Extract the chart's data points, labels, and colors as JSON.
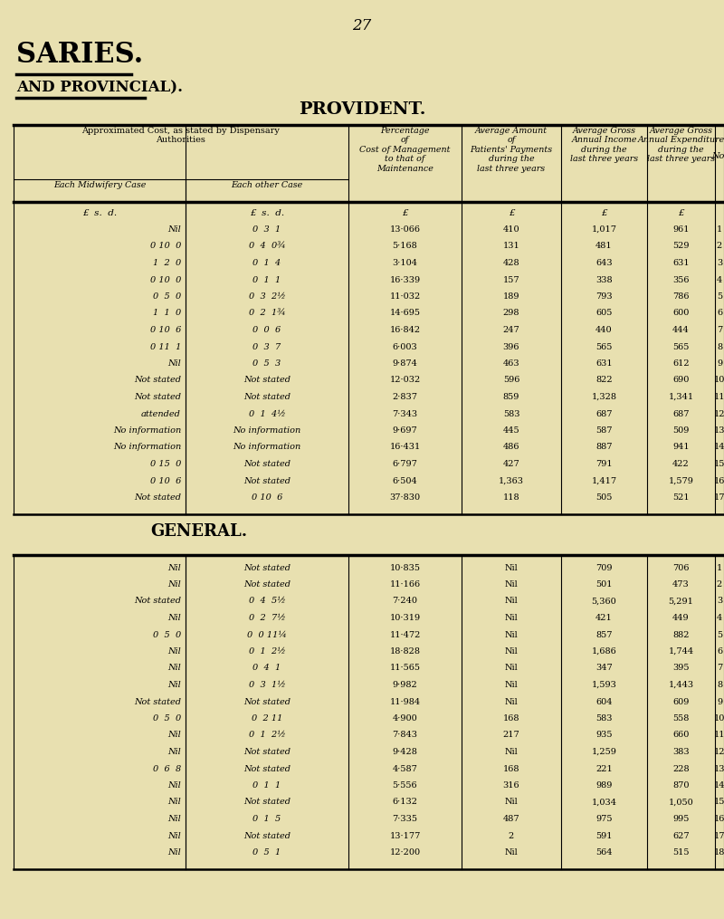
{
  "page_number": "27",
  "title1": "SARIES.",
  "title2": "AND PROVINCIAL).",
  "title3": "PROVIDENT.",
  "general_label": "GENERAL.",
  "bg_color": "#e8e0b0",
  "provident_rows": [
    [
      "Nil",
      "0  3  1",
      "13·066",
      "410",
      "1,017",
      "961",
      "1"
    ],
    [
      "0 10  0",
      "0  4  0¾",
      "5·168",
      "131",
      "481",
      "529",
      "2"
    ],
    [
      "1  2  0",
      "0  1  4",
      "3·104",
      "428",
      "643",
      "631",
      "3"
    ],
    [
      "0 10  0",
      "0  1  1",
      "16·339",
      "157",
      "338",
      "356",
      "4"
    ],
    [
      "0  5  0",
      "0  3  2½",
      "11·032",
      "189",
      "793",
      "786",
      "5"
    ],
    [
      "1  1  0",
      "0  2  1¾",
      "14·695",
      "298",
      "605",
      "600",
      "6"
    ],
    [
      "0 10  6",
      "0  0  6",
      "16·842",
      "247",
      "440",
      "444",
      "7"
    ],
    [
      "0 11  1",
      "0  3  7",
      "6·003",
      "396",
      "565",
      "565",
      "8"
    ],
    [
      "Nil",
      "0  5  3",
      "9·874",
      "463",
      "631",
      "612",
      "9"
    ],
    [
      "Not stated",
      "Not stated",
      "12·032",
      "596",
      "822",
      "690",
      "10"
    ],
    [
      "Not stated",
      "Not stated",
      "2·837",
      "859",
      "1,328",
      "1,341",
      "11"
    ],
    [
      "attended",
      "0  1  4½",
      "7·343",
      "583",
      "687",
      "687",
      "12"
    ],
    [
      "No information",
      "No information",
      "9·697",
      "445",
      "587",
      "509",
      "13"
    ],
    [
      "No information",
      "No information",
      "16·431",
      "486",
      "887",
      "941",
      "14"
    ],
    [
      "0 15  0",
      "Not stated",
      "6·797",
      "427",
      "791",
      "422",
      "15"
    ],
    [
      "0 10  6",
      "Not stated",
      "6·504",
      "1,363",
      "1,417",
      "1,579",
      "16"
    ],
    [
      "Not stated",
      "0 10  6",
      "37·830",
      "118",
      "505",
      "521",
      "17"
    ]
  ],
  "general_rows": [
    [
      "Nil",
      "Not stated",
      "10·835",
      "Nil",
      "709",
      "706",
      "1"
    ],
    [
      "Nil",
      "Not stated",
      "11·166",
      "Nil",
      "501",
      "473",
      "2"
    ],
    [
      "Not stated",
      "0  4  5½",
      "7·240",
      "Nil",
      "5,360",
      "5,291",
      "3"
    ],
    [
      "Nil",
      "0  2  7½",
      "10·319",
      "Nil",
      "421",
      "449",
      "4"
    ],
    [
      "0  5  0",
      "0  0 11¼",
      "11·472",
      "Nil",
      "857",
      "882",
      "5"
    ],
    [
      "Nil",
      "0  1  2½",
      "18·828",
      "Nil",
      "1,686",
      "1,744",
      "6"
    ],
    [
      "Nil",
      "0  4  1",
      "11·565",
      "Nil",
      "347",
      "395",
      "7"
    ],
    [
      "Nil",
      "0  3  1½",
      "9·982",
      "Nil",
      "1,593",
      "1,443",
      "8"
    ],
    [
      "Not stated",
      "Not stated",
      "11·984",
      "Nil",
      "604",
      "609",
      "9"
    ],
    [
      "0  5  0",
      "0  2 11",
      "4·900",
      "168",
      "583",
      "558",
      "10"
    ],
    [
      "Nil",
      "0  1  2½",
      "7·843",
      "217",
      "935",
      "660",
      "11"
    ],
    [
      "Nil",
      "Not stated",
      "9·428",
      "Nil",
      "1,259",
      "383",
      "12"
    ],
    [
      "0  6  8",
      "Not stated",
      "4·587",
      "168",
      "221",
      "228",
      "13"
    ],
    [
      "Nil",
      "0  1  1",
      "5·556",
      "316",
      "989",
      "870",
      "14"
    ],
    [
      "Nil",
      "Not stated",
      "6·132",
      "Nil",
      "1,034",
      "1,050",
      "15"
    ],
    [
      "Nil",
      "0  1  5",
      "7·335",
      "487",
      "975",
      "995",
      "16"
    ],
    [
      "Nil",
      "Not stated",
      "13·177",
      "2",
      "591",
      "627",
      "17"
    ],
    [
      "Nil",
      "0  5  1",
      "12·200",
      "Nil",
      "564",
      "515",
      "18"
    ]
  ]
}
